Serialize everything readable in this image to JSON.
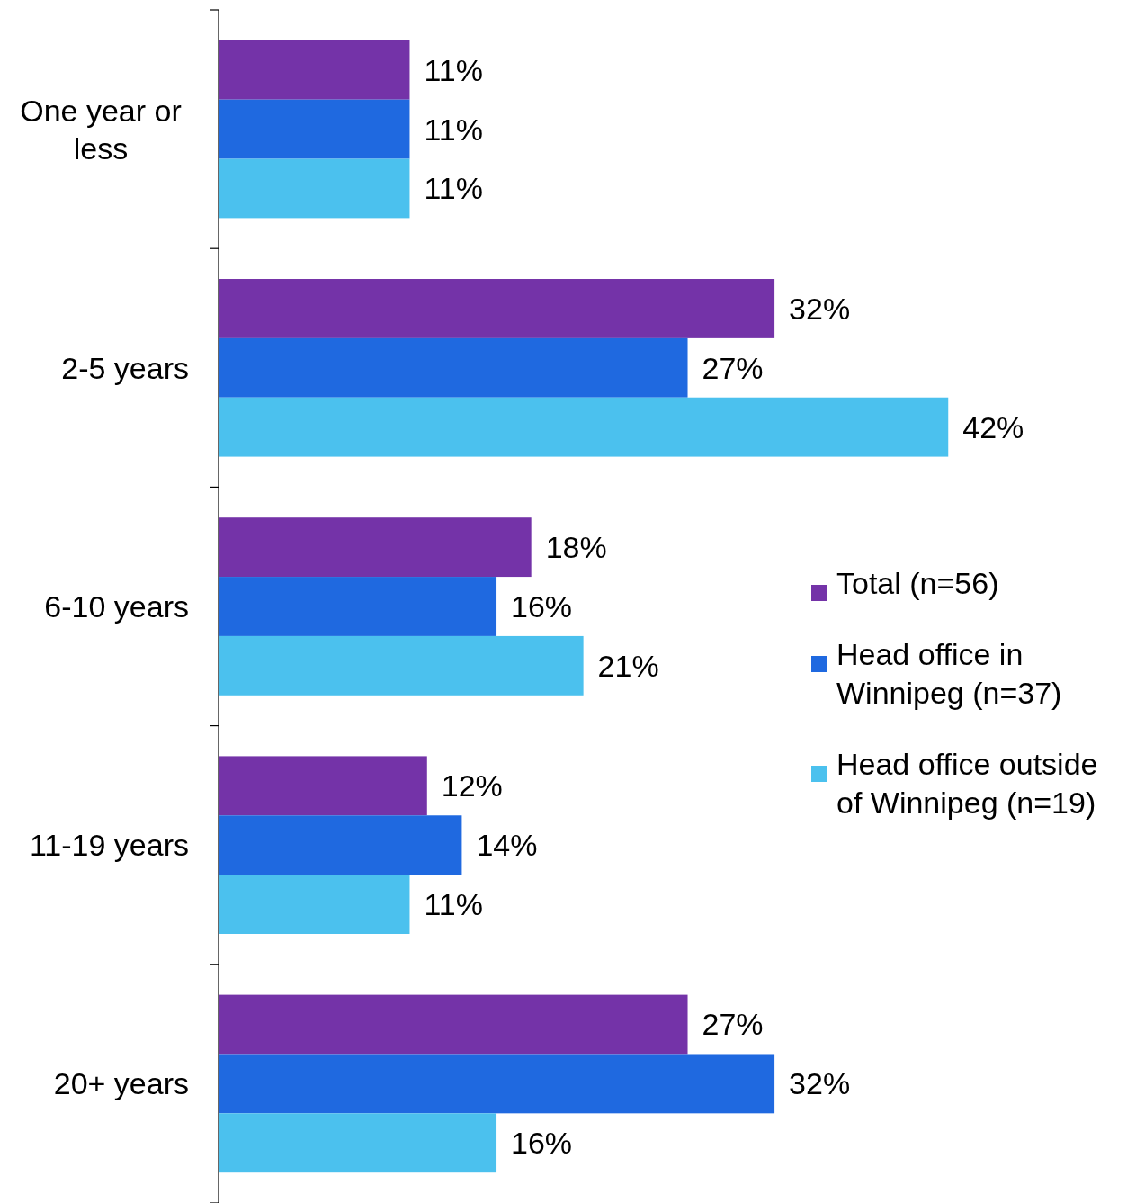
{
  "chart_data": {
    "type": "bar",
    "orientation": "horizontal",
    "legend": "right",
    "categories": [
      "One year or less",
      "2-5 years",
      "6-10 years",
      "11-19 years",
      "20+ years"
    ],
    "series": [
      {
        "name": "Total (n=56)",
        "color": "#7433a8",
        "values": [
          11,
          32,
          18,
          12,
          27
        ],
        "value_labels": [
          "11%",
          "32%",
          "18%",
          "12%",
          "27%"
        ]
      },
      {
        "name": "Head office in Winnipeg (n=37)",
        "color": "#1f69e0",
        "values": [
          11,
          27,
          16,
          14,
          32
        ],
        "value_labels": [
          "11%",
          "27%",
          "16%",
          "14%",
          "32%"
        ]
      },
      {
        "name": "Head office outside of Winnipeg (n=19)",
        "color": "#4bc1ee",
        "values": [
          11,
          42,
          21,
          11,
          16
        ],
        "value_labels": [
          "11%",
          "42%",
          "21%",
          "11%",
          "16%"
        ]
      }
    ]
  }
}
